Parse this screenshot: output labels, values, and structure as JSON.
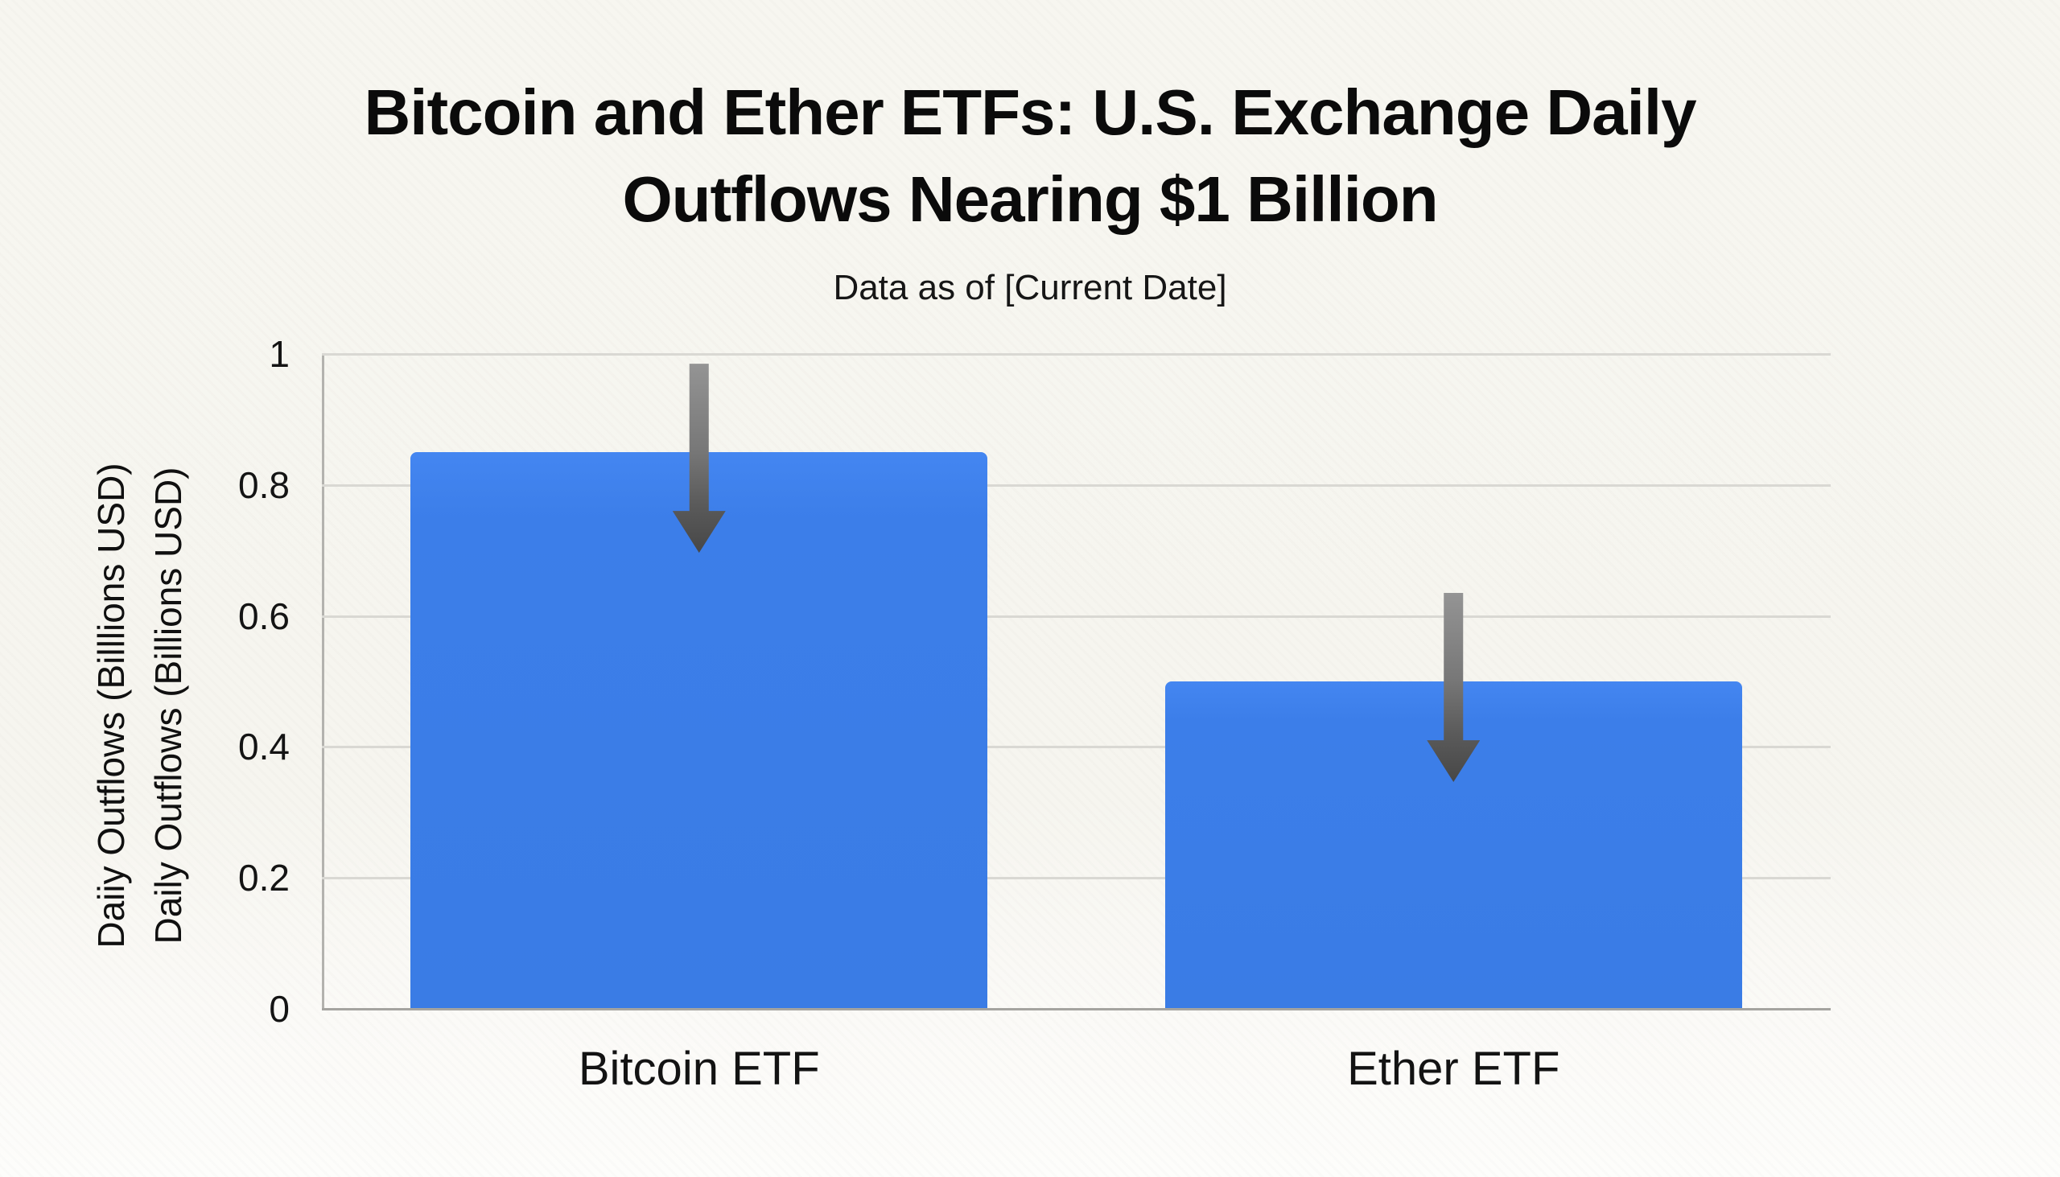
{
  "page": {
    "background_color": "#f7f6f0",
    "accent_color": "#3e80ea"
  },
  "chart_data": {
    "type": "bar",
    "title": "Bitcoin and Ether ETFs: U.S. Exchange Daily Outflows Nearing $1 Billion",
    "title_lines": [
      "Bitcoin and Ether ETFs: U.S. Exchange Daily",
      "Outflows Nearing $1 Billion"
    ],
    "subtitle": "Data as of [Current Date]",
    "categories": [
      "Bitcoin ETF",
      "Ether ETF"
    ],
    "values": [
      0.85,
      0.5
    ],
    "series": [
      {
        "name": "Daily Outflows",
        "values": [
          0.85,
          0.5
        ]
      }
    ],
    "xlabel": "",
    "ylabel": "Daily Outflows (Billions USD)",
    "ylabel_outer_duplicate": "Daiiy Outflows (Billlions USD)",
    "ylim": [
      0,
      1
    ],
    "yticks": [
      0,
      0.2,
      0.4,
      0.6,
      0.8,
      1
    ],
    "ytick_labels": [
      "0",
      "0.2",
      "0.4",
      "0.6",
      "0.8",
      "1"
    ],
    "grid": true,
    "legend": "none",
    "bar_color": "#3e80ea",
    "gridline_color": "#d9d8d3",
    "annotations": [
      {
        "type": "down-arrow",
        "category": "Bitcoin ETF",
        "color": "#5a5a5a"
      },
      {
        "type": "down-arrow",
        "category": "Ether ETF",
        "color": "#5a5a5a"
      }
    ]
  }
}
